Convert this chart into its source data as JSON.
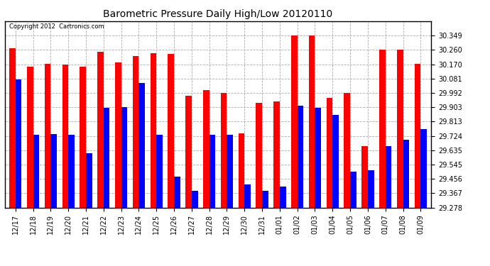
{
  "title": "Barometric Pressure Daily High/Low 20120110",
  "copyright": "Copyright 2012  Cartronics.com",
  "categories": [
    "12/17",
    "12/18",
    "12/19",
    "12/20",
    "12/21",
    "12/22",
    "12/23",
    "12/24",
    "12/25",
    "12/26",
    "12/27",
    "12/28",
    "12/29",
    "12/30",
    "12/31",
    "01/01",
    "01/02",
    "01/03",
    "01/04",
    "01/05",
    "01/06",
    "01/07",
    "01/08",
    "01/09"
  ],
  "highs": [
    30.27,
    30.155,
    30.175,
    30.17,
    30.155,
    30.25,
    30.18,
    30.22,
    30.24,
    30.235,
    29.975,
    30.01,
    29.99,
    29.74,
    29.93,
    29.94,
    30.349,
    30.349,
    29.96,
    29.99,
    29.66,
    30.26,
    30.26,
    30.175
  ],
  "lows": [
    30.075,
    29.73,
    29.735,
    29.73,
    29.615,
    29.9,
    29.905,
    30.055,
    29.73,
    29.47,
    29.38,
    29.73,
    29.73,
    29.42,
    29.38,
    29.41,
    29.91,
    29.9,
    29.855,
    29.5,
    29.51,
    29.66,
    29.7,
    29.765
  ],
  "bar_width": 0.35,
  "ylim_min": 29.278,
  "ylim_max": 30.438,
  "yticks": [
    29.278,
    29.367,
    29.456,
    29.545,
    29.635,
    29.724,
    29.813,
    29.903,
    29.992,
    30.081,
    30.17,
    30.26,
    30.349
  ],
  "high_color": "#ff0000",
  "low_color": "#0000ff",
  "bg_color": "#ffffff",
  "grid_color": "#aaaaaa",
  "title_fontsize": 10,
  "tick_fontsize": 7,
  "copyright_fontsize": 6
}
